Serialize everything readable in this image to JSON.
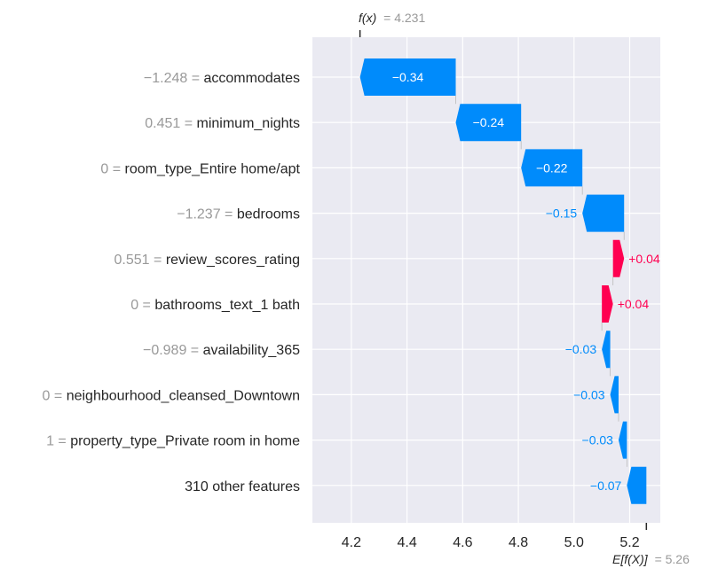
{
  "chart_data": {
    "type": "waterfall",
    "fx_label": "f(x)",
    "fx_value_text": "= 4.231",
    "ex_label": "E[f(X)]",
    "ex_value_text": "= 5.26",
    "fx": 4.231,
    "base_value": 5.26,
    "xlim": [
      4.06,
      5.31
    ],
    "xticks": [
      4.2,
      4.4,
      4.6,
      4.8,
      5.0,
      5.2
    ],
    "xtick_labels": [
      "4.2",
      "4.4",
      "4.6",
      "4.8",
      "5.0",
      "5.2"
    ],
    "grid": true,
    "colors": {
      "negative": "#008bfb",
      "positive": "#ff0051",
      "background": "#eaeaf2",
      "feature_value": "#999999",
      "feature_name": "#262626"
    },
    "features": [
      {
        "value_text": "−1.248 =",
        "name": "accommodates",
        "shap": -0.34,
        "label": "−0.34",
        "start": 4.575,
        "end": 4.231
      },
      {
        "value_text": "0.451 =",
        "name": "minimum_nights",
        "shap": -0.24,
        "label": "−0.24",
        "start": 4.81,
        "end": 4.575
      },
      {
        "value_text": "0 =",
        "name": "room_type_Entire home/apt",
        "shap": -0.22,
        "label": "−0.22",
        "start": 5.03,
        "end": 4.81
      },
      {
        "value_text": "−1.237 =",
        "name": "bedrooms",
        "shap": -0.15,
        "label": "−0.15",
        "start": 5.18,
        "end": 5.03
      },
      {
        "value_text": "0.551 =",
        "name": "review_scores_rating",
        "shap": 0.04,
        "label": "+0.04",
        "start": 5.14,
        "end": 5.18
      },
      {
        "value_text": "0 =",
        "name": "bathrooms_text_1 bath",
        "shap": 0.04,
        "label": "+0.04",
        "start": 5.1,
        "end": 5.14
      },
      {
        "value_text": "−0.989 =",
        "name": "availability_365",
        "shap": -0.03,
        "label": "−0.03",
        "start": 5.13,
        "end": 5.1
      },
      {
        "value_text": "0 =",
        "name": "neighbourhood_cleansed_Downtown",
        "shap": -0.03,
        "label": "−0.03",
        "start": 5.16,
        "end": 5.13
      },
      {
        "value_text": "1 =",
        "name": "property_type_Private room in home",
        "shap": -0.03,
        "label": "−0.03",
        "start": 5.19,
        "end": 5.16
      },
      {
        "value_text": "",
        "name": "310 other features",
        "shap": -0.07,
        "label": "−0.07",
        "start": 5.26,
        "end": 5.19
      }
    ]
  }
}
